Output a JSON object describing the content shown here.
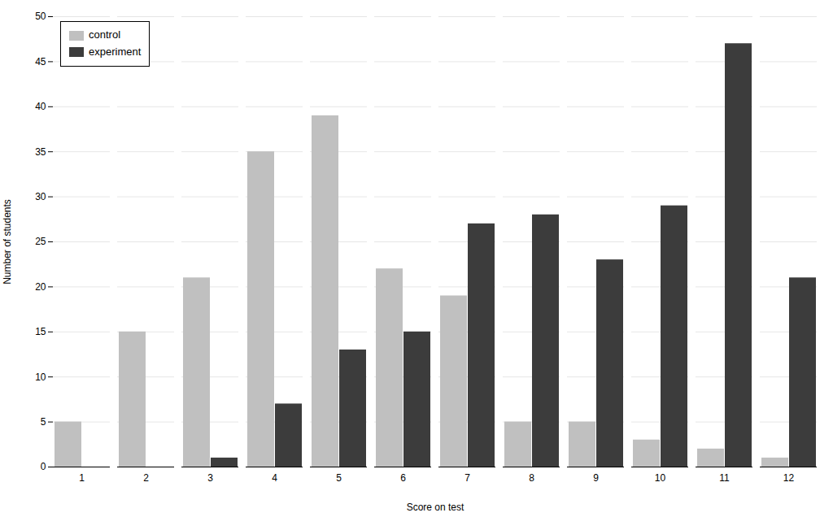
{
  "chart_data": {
    "type": "bar",
    "categories": [
      1,
      2,
      3,
      4,
      5,
      6,
      7,
      8,
      9,
      10,
      11,
      12
    ],
    "series": [
      {
        "name": "control",
        "color": "#c0c0c0",
        "values": [
          5,
          15,
          21,
          35,
          39,
          22,
          19,
          5,
          5,
          3,
          2,
          1
        ]
      },
      {
        "name": "experiment",
        "color": "#3c3c3c",
        "values": [
          0,
          0,
          1,
          7,
          13,
          15,
          27,
          28,
          23,
          29,
          47,
          21
        ]
      }
    ],
    "xlabel": "Score on test",
    "ylabel": "Number of students",
    "ylim": [
      0,
      50
    ],
    "yticks": [
      0,
      5,
      10,
      15,
      20,
      25,
      30,
      35,
      40,
      45,
      50
    ],
    "grid": true,
    "legend": "upper left"
  }
}
